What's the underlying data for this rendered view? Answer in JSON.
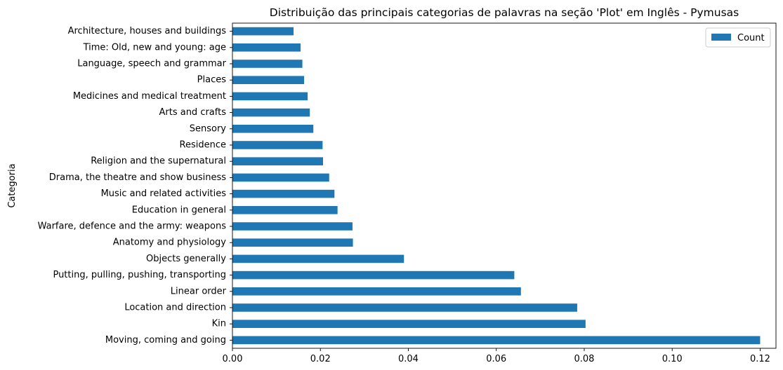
{
  "chart_data": {
    "type": "bar",
    "orientation": "horizontal",
    "title": "Distribuição das principais categorias de palavras na seção 'Plot' em Inglês - Pymusas",
    "xlabel": "",
    "ylabel": "Categoria",
    "xlim": [
      0,
      0.1236
    ],
    "x_ticks": [
      "0.00",
      "0.02",
      "0.04",
      "0.06",
      "0.08",
      "0.10",
      "0.12"
    ],
    "x_tick_values": [
      0,
      0.02,
      0.04,
      0.06,
      0.08,
      0.1,
      0.12
    ],
    "grid": false,
    "legend": {
      "placement": "top-right",
      "entries": [
        "Count"
      ]
    },
    "bar_color": "#1f77b4",
    "categories": [
      "Moving, coming and going",
      "Kin",
      "Location and direction",
      "Linear order",
      "Putting, pulling, pushing, transporting",
      "Objects generally",
      "Anatomy and physiology",
      "Warfare, defence and the army: weapons",
      "Education in general",
      "Music and related activities",
      "Drama, the theatre and show business",
      "Religion and the supernatural",
      "Residence",
      "Sensory",
      "Arts and crafts",
      "Medicines and medical treatment",
      "Places",
      "Language, speech and grammar",
      "Time: Old, new and young: age",
      "Architecture, houses and buildings"
    ],
    "series": [
      {
        "name": "Count",
        "values": [
          0.12,
          0.0803,
          0.0784,
          0.0656,
          0.0641,
          0.039,
          0.0274,
          0.0273,
          0.0239,
          0.0232,
          0.022,
          0.0206,
          0.0205,
          0.0184,
          0.0176,
          0.0171,
          0.0163,
          0.0159,
          0.0155,
          0.0139
        ]
      }
    ]
  }
}
